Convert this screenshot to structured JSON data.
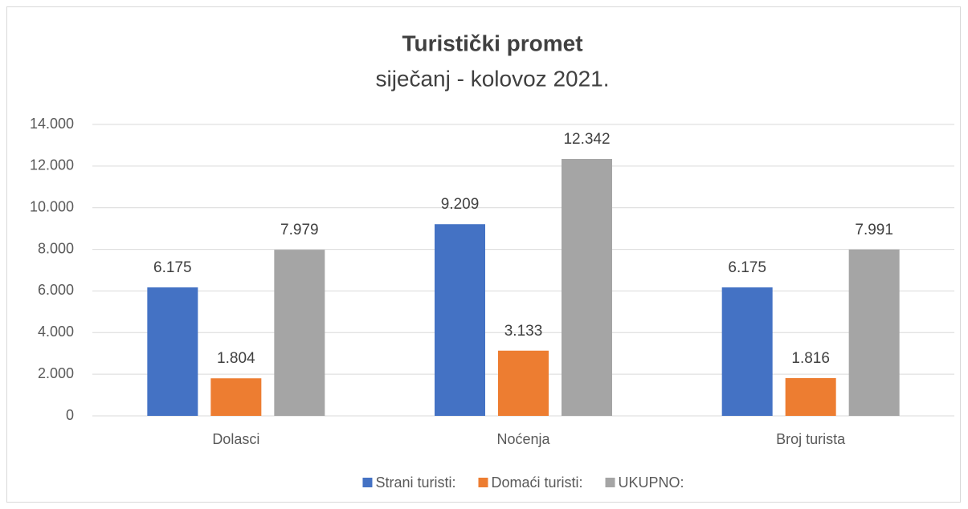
{
  "chart_data": {
    "type": "bar",
    "title": "Turistički promet",
    "subtitle": "siječanj - kolovoz 2021.",
    "categories": [
      "Dolasci",
      "Noćenja",
      "Broj turista"
    ],
    "series": [
      {
        "name": "Strani turisti:",
        "color": "#4472c4",
        "values": [
          6175,
          9209,
          6175
        ],
        "value_labels": [
          "6.175",
          "9.209",
          "6.175"
        ]
      },
      {
        "name": "Domaći turisti:",
        "color": "#ed7d31",
        "values": [
          1804,
          3133,
          1816
        ],
        "value_labels": [
          "1.804",
          "3.133",
          "1.816"
        ]
      },
      {
        "name": "UKUPNO:",
        "color": "#a5a5a5",
        "values": [
          7979,
          12342,
          7991
        ],
        "value_labels": [
          "7.979",
          "12.342",
          "7.991"
        ]
      }
    ],
    "ylim": [
      0,
      14000
    ],
    "yticks": [
      0,
      {
        "value": 2000,
        "label": "2.000"
      },
      {
        "value": 4000,
        "label": "4.000"
      },
      {
        "value": 6000,
        "label": "6.000"
      },
      {
        "value": 8000,
        "label": "8.000"
      },
      {
        "value": 10000,
        "label": "10.000"
      },
      {
        "value": 12000,
        "label": "12.000"
      },
      {
        "value": 14000,
        "label": "14.000"
      }
    ],
    "grid": true,
    "legend": "bottom"
  }
}
